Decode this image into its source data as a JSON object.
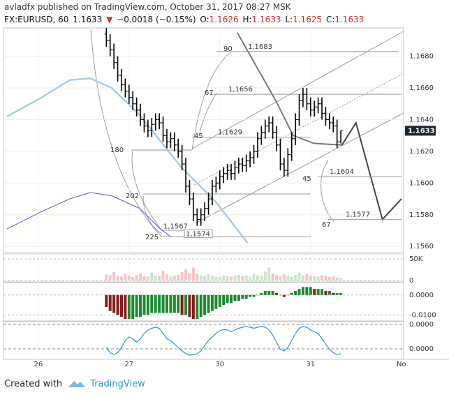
{
  "header": {
    "published": "avladfx published on TradingView.com, October 31, 2017 08:27 MSK"
  },
  "chart_data": {
    "type": "ohlc",
    "symbol": "FX:EURUSD, 60",
    "direction": "▼",
    "change": "−0.0018 (−0.15%)",
    "ohlc_keys": [
      "O:",
      "H:",
      "L:",
      "C:"
    ],
    "color": "#000000",
    "x": [
      18,
      19,
      20,
      21,
      22,
      23,
      24,
      25,
      26,
      27,
      28,
      29,
      30,
      31,
      32,
      33,
      34,
      35,
      36,
      37,
      38,
      39,
      40,
      41,
      42,
      43,
      44,
      45,
      46,
      47,
      48,
      49,
      50,
      51,
      52,
      53,
      54,
      55,
      56,
      57,
      58,
      59,
      60,
      61,
      62,
      63,
      64,
      65,
      66,
      67,
      68,
      69,
      70,
      71,
      72,
      73,
      74,
      75,
      76,
      77,
      78,
      79,
      80
    ],
    "open": [
      1.1694,
      1.169,
      1.1684,
      1.1676,
      1.1668,
      1.1662,
      1.1658,
      1.1654,
      1.165,
      1.1646,
      1.164,
      1.1636,
      1.1633,
      1.1637,
      1.164,
      1.1638,
      1.163,
      1.1626,
      1.1628,
      1.1624,
      1.162,
      1.1612,
      1.1598,
      1.159,
      1.158,
      1.1577,
      1.158,
      1.1584,
      1.159,
      1.1598,
      1.16,
      1.1604,
      1.1606,
      1.1608,
      1.1606,
      1.161,
      1.1612,
      1.1611,
      1.1614,
      1.1616,
      1.162,
      1.1628,
      1.1632,
      1.1636,
      1.1638,
      1.1632,
      1.1624,
      1.1612,
      1.1608,
      1.1618,
      1.1628,
      1.164,
      1.1652,
      1.1656,
      1.165,
      1.1646,
      1.1648,
      1.165,
      1.1644,
      1.164,
      1.1638,
      1.1636,
      1.1626
    ],
    "high": [
      1.1698,
      1.1694,
      1.1688,
      1.168,
      1.1672,
      1.1666,
      1.1662,
      1.1658,
      1.1654,
      1.165,
      1.1644,
      1.164,
      1.1641,
      1.1644,
      1.1644,
      1.1642,
      1.1634,
      1.1632,
      1.1632,
      1.1628,
      1.1624,
      1.1616,
      1.1602,
      1.1594,
      1.1584,
      1.1584,
      1.1588,
      1.1594,
      1.1602,
      1.1604,
      1.1608,
      1.161,
      1.1612,
      1.1612,
      1.1614,
      1.1616,
      1.1616,
      1.1618,
      1.162,
      1.1624,
      1.1632,
      1.1636,
      1.164,
      1.1642,
      1.1642,
      1.1636,
      1.1628,
      1.1616,
      1.1622,
      1.1632,
      1.1644,
      1.1656,
      1.166,
      1.166,
      1.1654,
      1.1652,
      1.1654,
      1.1654,
      1.1648,
      1.1644,
      1.1642,
      1.164,
      1.1633
    ],
    "low": [
      1.1686,
      1.168,
      1.1672,
      1.1664,
      1.1658,
      1.1654,
      1.165,
      1.1646,
      1.1642,
      1.1636,
      1.1632,
      1.1629,
      1.1629,
      1.1633,
      1.1634,
      1.1626,
      1.1622,
      1.1622,
      1.162,
      1.1616,
      1.1608,
      1.1594,
      1.1586,
      1.1576,
      1.1573,
      1.1573,
      1.1576,
      1.158,
      1.1586,
      1.1594,
      1.1596,
      1.16,
      1.1602,
      1.1602,
      1.1602,
      1.1606,
      1.1607,
      1.1607,
      1.161,
      1.1612,
      1.1616,
      1.1624,
      1.1628,
      1.1632,
      1.1628,
      1.162,
      1.1608,
      1.1604,
      1.1604,
      1.1614,
      1.1624,
      1.1636,
      1.1648,
      1.1646,
      1.1642,
      1.1642,
      1.1644,
      1.164,
      1.1636,
      1.1634,
      1.1632,
      1.1622,
      1.1625
    ],
    "close": [
      1.169,
      1.1684,
      1.1676,
      1.1668,
      1.1662,
      1.1658,
      1.1654,
      1.165,
      1.1646,
      1.164,
      1.1636,
      1.1633,
      1.1637,
      1.164,
      1.1638,
      1.163,
      1.1626,
      1.1628,
      1.1624,
      1.162,
      1.1612,
      1.1598,
      1.159,
      1.158,
      1.1577,
      1.158,
      1.1584,
      1.159,
      1.1598,
      1.16,
      1.1604,
      1.1606,
      1.1608,
      1.1606,
      1.161,
      1.1612,
      1.1611,
      1.1614,
      1.1616,
      1.162,
      1.1628,
      1.1632,
      1.1636,
      1.1638,
      1.1632,
      1.1624,
      1.1612,
      1.1608,
      1.1618,
      1.1628,
      1.164,
      1.1652,
      1.1656,
      1.165,
      1.1646,
      1.1648,
      1.165,
      1.1644,
      1.164,
      1.1638,
      1.1636,
      1.1626,
      1.1633
    ],
    "xlim": [
      -9.2,
      96.6
    ],
    "xticks": [
      {
        "value": 0,
        "label": "26"
      },
      {
        "value": 24,
        "label": "27"
      },
      {
        "value": 48,
        "label": "30"
      },
      {
        "value": 72,
        "label": "31"
      },
      {
        "value": 96,
        "label": "No"
      }
    ],
    "ylim": [
      1.1557,
      1.1697
    ],
    "yticks": [
      {
        "value": 1.156,
        "label": "1.1560"
      },
      {
        "value": 1.158,
        "label": "1.1580"
      },
      {
        "value": 1.16,
        "label": "1.1600"
      },
      {
        "value": 1.162,
        "label": "1.1620"
      },
      {
        "value": 1.164,
        "label": "1.1640"
      },
      {
        "value": 1.166,
        "label": "1.1660"
      },
      {
        "value": 1.168,
        "label": "1.1680"
      }
    ],
    "lines": [
      {
        "color": "#a9cbe8",
        "width": 2.5,
        "x": [
          -8.3,
          0.9,
          8.3,
          13.8,
          19.4,
          26.8,
          37.8,
          47,
          55.4
        ],
        "values": [
          1.1642,
          1.1654,
          1.1665,
          1.1666,
          1.166,
          1.1643,
          1.161,
          1.1588,
          1.1562
        ]
      },
      {
        "color": "#7b3fe4",
        "width": 1,
        "x": [
          -8.3,
          0.9,
          8.3,
          13.8,
          19.4,
          26.8,
          32.3,
          35.1
        ],
        "values": [
          1.1571,
          1.1582,
          1.159,
          1.1594,
          1.1592,
          1.1584,
          1.1571,
          1.1566
        ]
      },
      {
        "color": "#777777",
        "width": 2,
        "x": [
          52.6,
          62.8,
          67.4,
          72.9,
          80.3
        ],
        "values": [
          1.1695,
          1.1652,
          1.163,
          1.1625,
          1.1624
        ]
      },
      {
        "color": "#444444",
        "width": 2,
        "x": [
          80.3,
          84,
          91,
          96
        ],
        "values": [
          1.1624,
          1.1638,
          1.1577,
          1.159
        ]
      }
    ],
    "levels": [
      {
        "value": 1.1683,
        "label": "1,1683"
      },
      {
        "value": 1.1656,
        "label": "1,1656"
      },
      {
        "value": 1.1629,
        "label": "1,1629"
      },
      {
        "value": 1.1604,
        "label": "1,1604"
      },
      {
        "value": 1.1577,
        "label": "1,1577"
      },
      {
        "value": 1.1567,
        "label": "1,1567"
      },
      {
        "value": 1.1574,
        "label": "1,1574"
      }
    ],
    "angles": [
      "90",
      "67",
      "45",
      "180",
      "202",
      "225",
      "45",
      "67"
    ],
    "panels": [
      {
        "type": "bar",
        "values": [
          14000,
          12000,
          20000,
          10000,
          9000,
          15000,
          11000,
          8000,
          12000,
          16000,
          10000,
          9000,
          18000,
          12000,
          10000,
          22000,
          14000,
          9000,
          11000,
          13000,
          20000,
          25000,
          18000,
          30000,
          15000,
          12000,
          10000,
          14000,
          11000,
          9000,
          8000,
          12000,
          10000,
          9000,
          11000,
          13000,
          10000,
          12000,
          9000,
          15000,
          12000,
          11000,
          20000,
          30000,
          16000,
          12000,
          10000,
          14000,
          11000,
          9000,
          13000,
          18000,
          12000,
          15000,
          11000,
          10000,
          9000,
          12000,
          10000,
          8000,
          9000,
          7000,
          6000
        ],
        "ylim": [
          0,
          58000
        ],
        "yticks": [
          {
            "value": 50000,
            "label": "50K"
          },
          0
        ]
      },
      {
        "type": "bar",
        "values": [
          -0.006,
          -0.008,
          -0.009,
          -0.01,
          -0.011,
          -0.012,
          -0.012,
          -0.012,
          -0.011,
          -0.011,
          -0.01,
          -0.01,
          -0.009,
          -0.009,
          -0.009,
          -0.009,
          -0.009,
          -0.009,
          -0.009,
          -0.009,
          -0.01,
          -0.01,
          -0.011,
          -0.012,
          -0.012,
          -0.011,
          -0.01,
          -0.009,
          -0.008,
          -0.007,
          -0.006,
          -0.005,
          -0.004,
          -0.004,
          -0.003,
          -0.003,
          -0.002,
          -0.002,
          -0.001,
          -0.001,
          0.0,
          0.001,
          0.002,
          0.002,
          0.002,
          0.001,
          0.0,
          -0.001,
          0.0,
          0.001,
          0.002,
          0.003,
          0.004,
          0.004,
          0.004,
          0.003,
          0.003,
          0.003,
          0.002,
          0.002,
          0.001,
          0.001,
          0.001
        ],
        "ylim": [
          -0.0123,
          0.0055
        ],
        "yticks": [
          {
            "value": 0,
            "label": "0.0000"
          },
          {
            "value": -0.01,
            "label": "-0.0100"
          }
        ]
      },
      {
        "type": "line",
        "color": "#2196f3",
        "values": [
          30,
          15,
          10,
          15,
          30,
          50,
          60,
          55,
          45,
          55,
          70,
          80,
          85,
          88,
          85,
          70,
          55,
          50,
          40,
          30,
          20,
          12,
          8,
          10,
          12,
          20,
          35,
          50,
          60,
          70,
          78,
          82,
          80,
          75,
          80,
          85,
          88,
          90,
          88,
          85,
          88,
          90,
          88,
          80,
          65,
          45,
          25,
          20,
          30,
          50,
          70,
          85,
          90,
          88,
          80,
          75,
          70,
          55,
          40,
          25,
          15,
          10,
          12
        ],
        "ylim": [
          0,
          100
        ],
        "labels": [
          "0.0000",
          "0.0000"
        ]
      }
    ]
  },
  "footer": {
    "created": "Created with",
    "brand": "TradingView"
  }
}
